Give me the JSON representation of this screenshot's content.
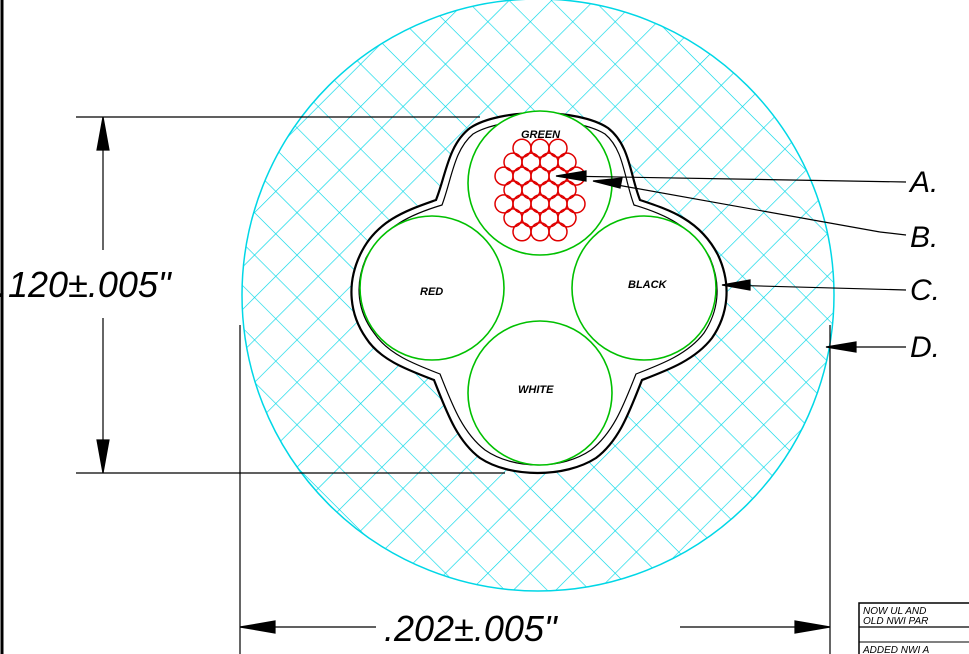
{
  "conductors": {
    "green": "GREEN",
    "red": "RED",
    "black": "BLACK",
    "white": "WHITE"
  },
  "dimensions": {
    "height": ".120±.005\"",
    "width": ".202±.005\""
  },
  "callouts": [
    "A.",
    "B.",
    "C.",
    "D."
  ],
  "title_block": {
    "line1": "NOW UL AND",
    "line2": "OLD NWI PAR",
    "line3": "ADDED NWI A"
  },
  "colors": {
    "jacket_hatch": "#00d7e6",
    "insulation": "#00c000",
    "strands": "#e00000",
    "shield": "#000000"
  }
}
